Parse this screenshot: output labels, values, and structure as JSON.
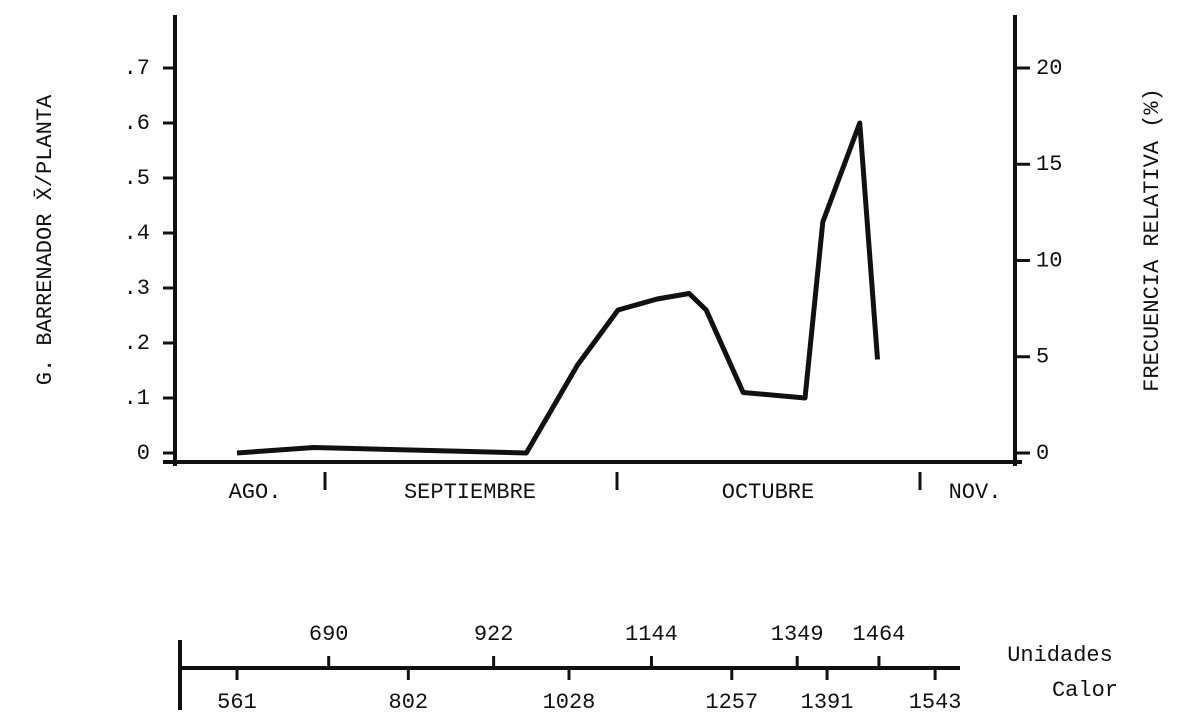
{
  "chart_data": {
    "type": "line",
    "y_label": "G. BARRENADOR X̄/PLANTA",
    "y2_label": "FRECUENCIA RELATIVA (%)",
    "x_label_lines": [
      "Unidades",
      "Calor"
    ],
    "months": [
      "AGO.",
      "SEPTIEMBRE",
      "OCTUBRE",
      "NOV."
    ],
    "x": [
      561,
      669,
      968,
      1040,
      1097,
      1152,
      1197,
      1221,
      1273,
      1360,
      1385,
      1437,
      1462
    ],
    "series": [
      {
        "color": "#111111",
        "values": [
          0,
          0.01,
          0,
          0.16,
          0.26,
          0.28,
          0.29,
          0.26,
          0.11,
          0.1,
          0.42,
          0.6,
          0.17
        ]
      }
    ],
    "xlim": [
      516,
      1578
    ],
    "xticks": [
      561,
      690,
      802,
      922,
      1028,
      1144,
      1257,
      1349,
      1391,
      1464,
      1543
    ],
    "ylim": [
      0,
      0.7
    ],
    "yticks": [
      0,
      {
        "value": 0.1,
        "label": ".1"
      },
      {
        "value": 0.2,
        "label": ".2"
      },
      {
        "value": 0.3,
        "label": ".3"
      },
      {
        "value": 0.4,
        "label": ".4"
      },
      {
        "value": 0.5,
        "label": ".5"
      },
      {
        "value": 0.6,
        "label": ".6"
      },
      {
        "value": 0.7,
        "label": ".7"
      }
    ],
    "y2lim": [
      0,
      20
    ],
    "y2ticks": [
      0,
      5,
      10,
      15,
      20
    ]
  }
}
